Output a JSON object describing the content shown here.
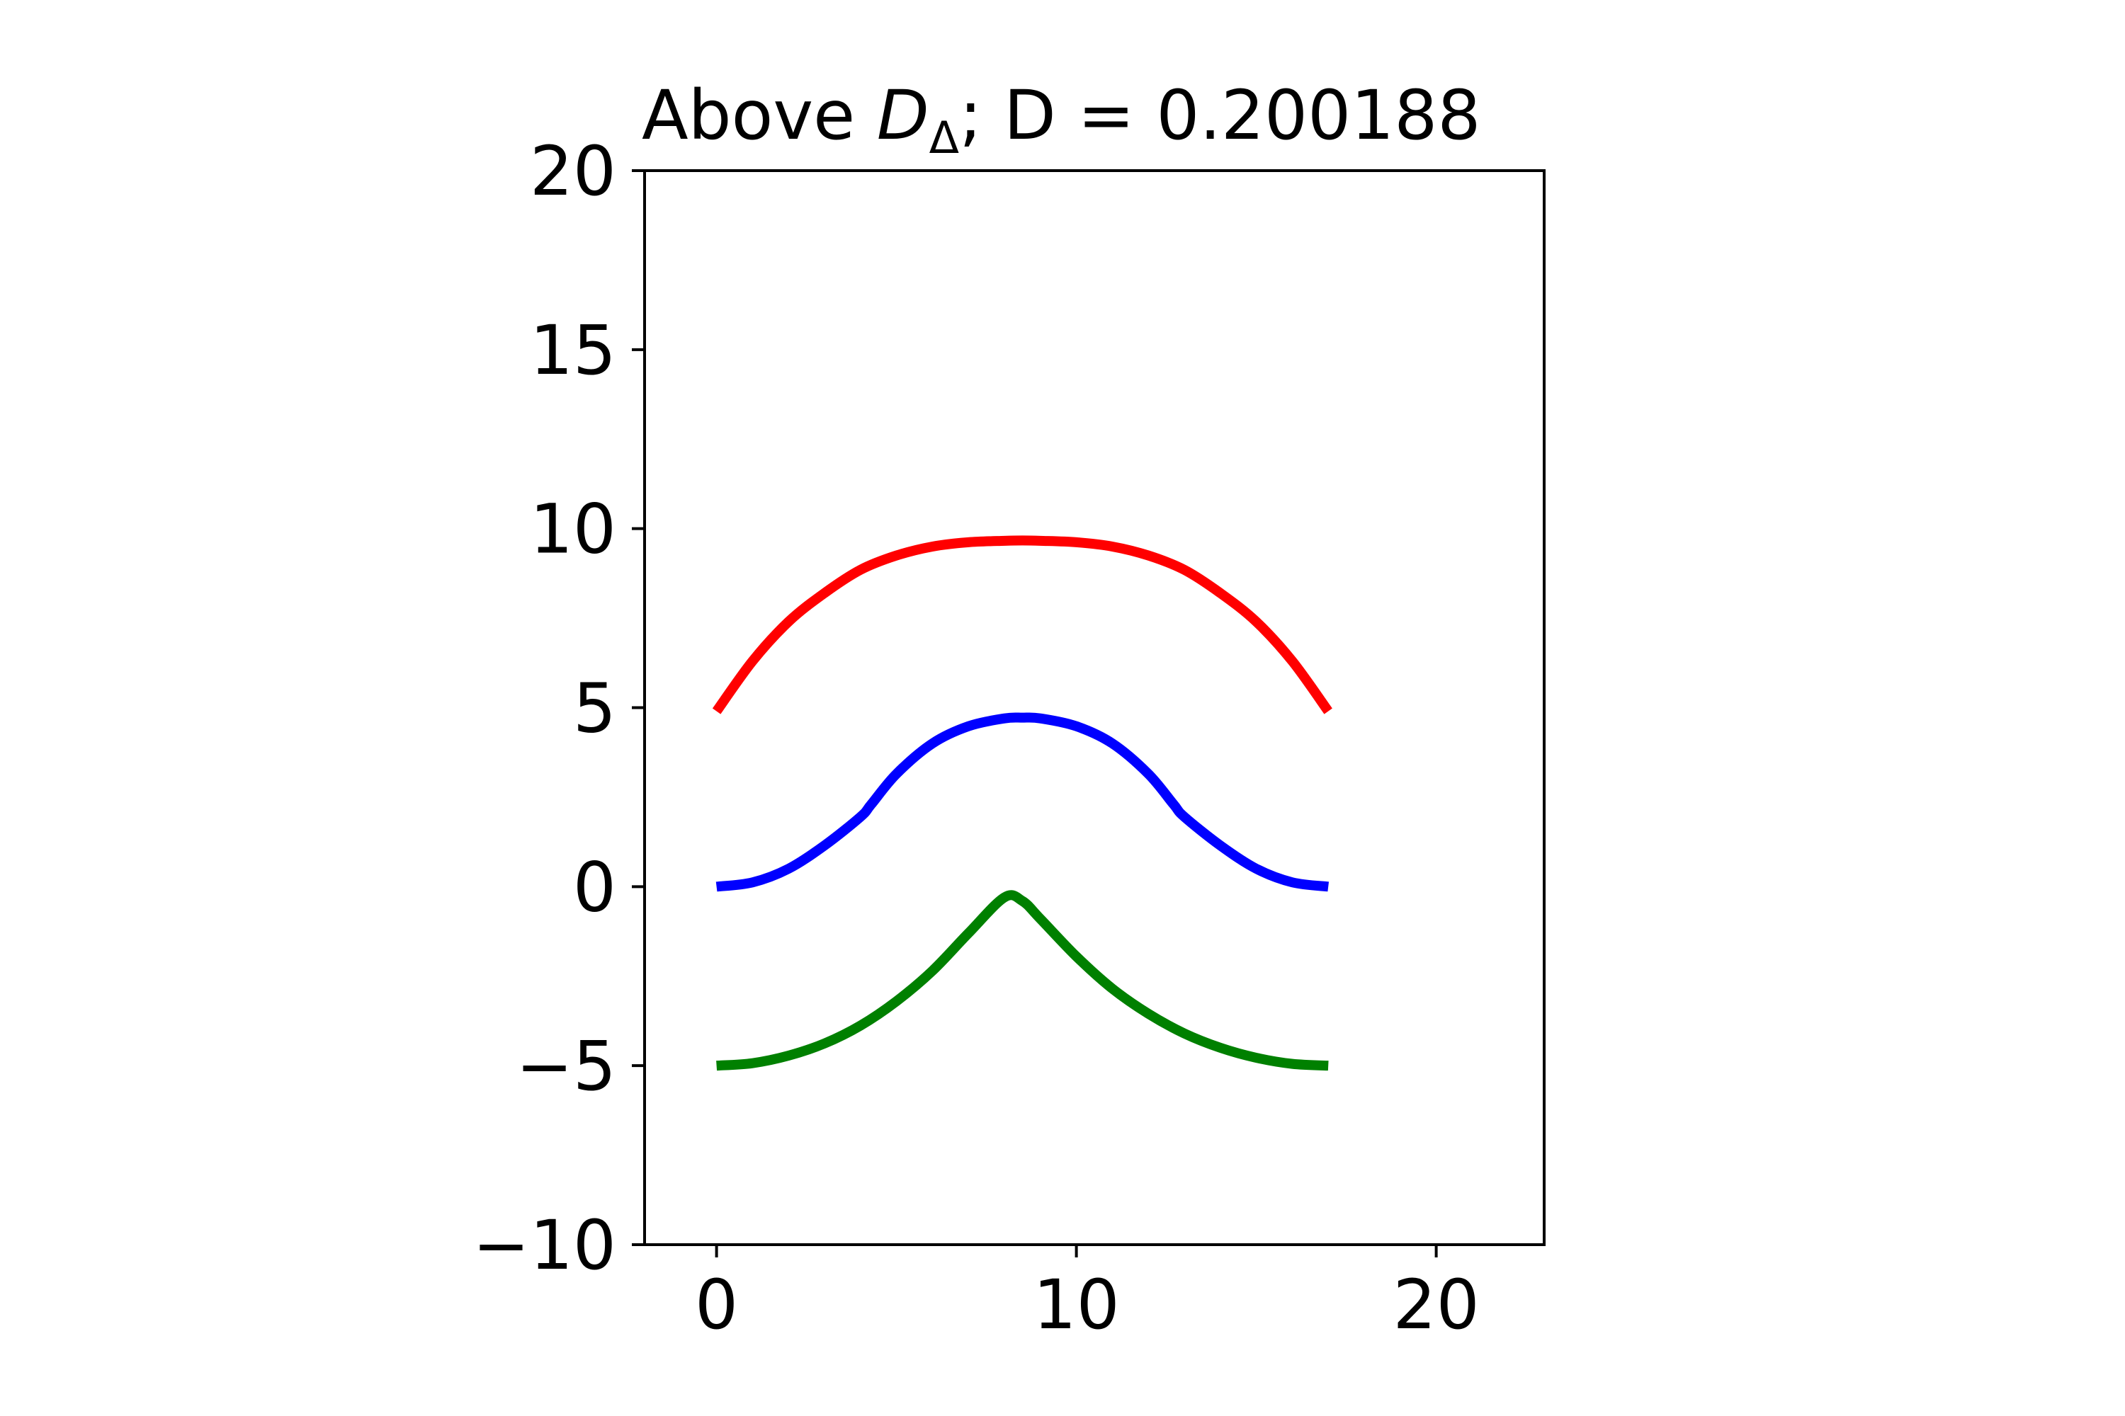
{
  "chart_data": {
    "type": "line",
    "title": {
      "prefix": "Above ",
      "symbol": "D",
      "subscript": "Δ",
      "suffix": "; D = 0.200188"
    },
    "xlabel": "",
    "ylabel": "",
    "xlim": [
      -2,
      23
    ],
    "ylim": [
      -10,
      20
    ],
    "x_ticks": [
      0,
      10,
      20
    ],
    "x_tick_labels": [
      "0",
      "10",
      "20"
    ],
    "y_ticks": [
      -10,
      -5,
      0,
      5,
      10,
      15,
      20
    ],
    "y_tick_labels": [
      "−10",
      "−5",
      "0",
      "5",
      "10",
      "15",
      "20"
    ],
    "grid": false,
    "legend": "none",
    "series": [
      {
        "color": "#ff0000",
        "x": [
          0.0,
          1.0,
          2.0,
          3.0,
          4.0,
          5.0,
          6.0,
          7.0,
          8.0,
          8.5,
          9.0,
          10.0,
          11.0,
          12.0,
          13.0,
          14.0,
          15.0,
          16.0,
          17.0
        ],
        "y": [
          4.9,
          6.3,
          7.4,
          8.2,
          8.85,
          9.25,
          9.5,
          9.62,
          9.66,
          9.67,
          9.66,
          9.62,
          9.5,
          9.25,
          8.85,
          8.2,
          7.4,
          6.3,
          4.9
        ]
      },
      {
        "color": "#0000ff",
        "x": [
          0.0,
          1.0,
          2.0,
          3.0,
          4.0,
          4.3,
          5.0,
          6.0,
          7.0,
          8.0,
          8.5,
          9.0,
          10.0,
          11.0,
          12.0,
          12.7,
          13.0,
          14.0,
          15.0,
          16.0,
          17.0
        ],
        "y": [
          0.0,
          0.12,
          0.5,
          1.15,
          1.95,
          2.3,
          3.15,
          4.0,
          4.48,
          4.7,
          4.72,
          4.7,
          4.48,
          4.0,
          3.15,
          2.3,
          1.95,
          1.15,
          0.5,
          0.12,
          0.0
        ]
      },
      {
        "color": "#008000",
        "x": [
          0.0,
          1.0,
          2.0,
          3.0,
          4.0,
          5.0,
          6.0,
          7.0,
          8.0,
          8.5,
          9.0,
          10.0,
          11.0,
          12.0,
          13.0,
          14.0,
          15.0,
          16.0,
          17.0
        ],
        "y": [
          -5.0,
          -4.93,
          -4.72,
          -4.38,
          -3.88,
          -3.2,
          -2.35,
          -1.3,
          -0.3,
          -0.4,
          -0.9,
          -1.95,
          -2.85,
          -3.55,
          -4.1,
          -4.5,
          -4.78,
          -4.95,
          -5.0
        ]
      }
    ]
  }
}
